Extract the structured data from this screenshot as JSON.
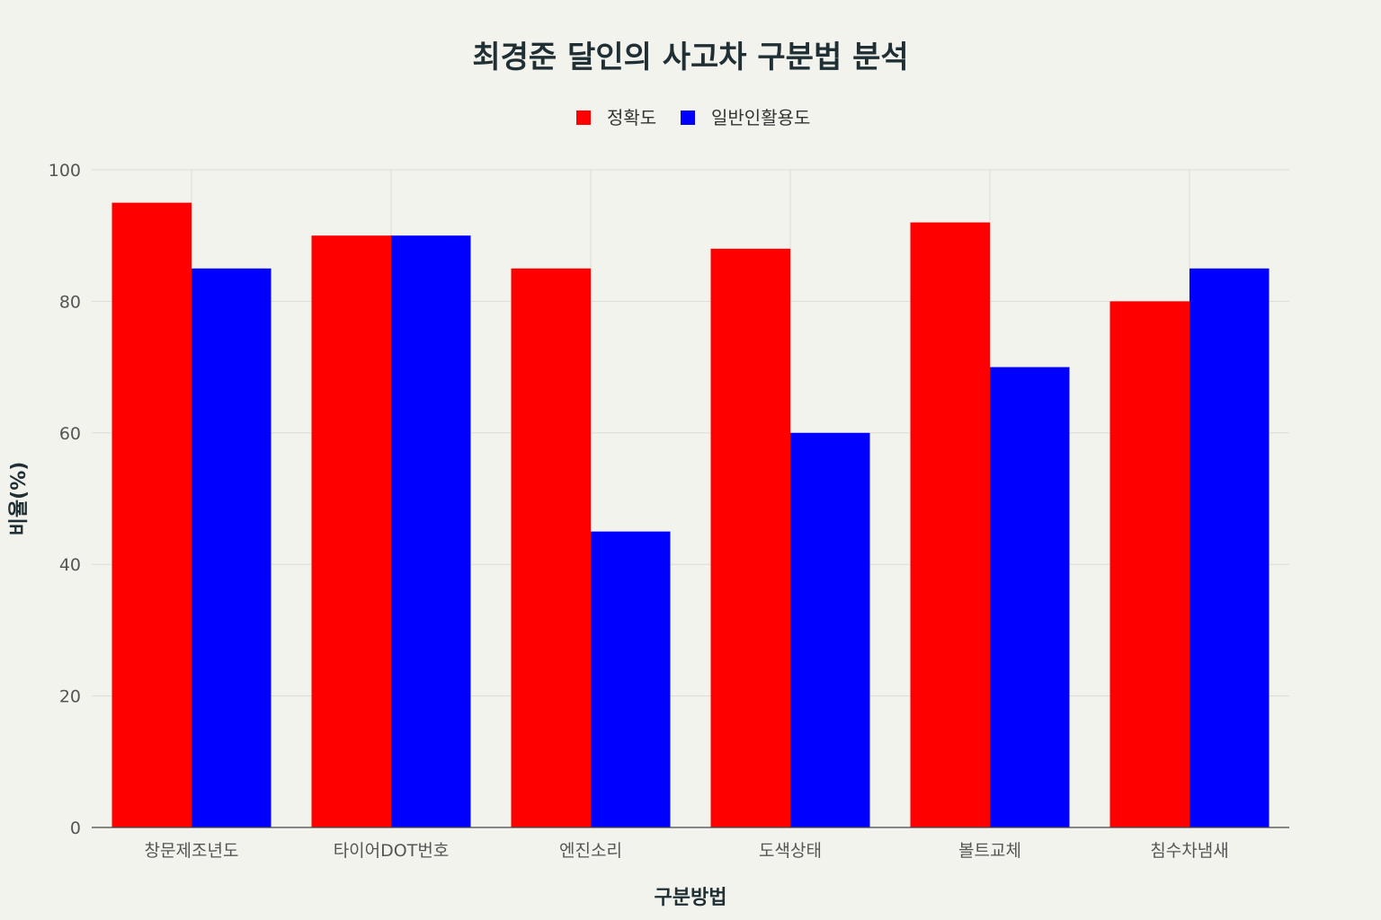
{
  "chart_data": {
    "type": "bar",
    "title": "최경준 달인의 사고차 구분법 분석",
    "xlabel": "구분방법",
    "ylabel": "비율(%)",
    "ylim": [
      0,
      100
    ],
    "yticks": [
      0,
      20,
      40,
      60,
      80,
      100
    ],
    "grid": true,
    "legend_position": "top-center",
    "categories": [
      "창문제조년도",
      "타이어DOT번호",
      "엔진소리",
      "도색상태",
      "볼트교체",
      "침수차냄새"
    ],
    "series": [
      {
        "name": "정확도",
        "color": "#ff0000",
        "values": [
          95,
          90,
          85,
          88,
          92,
          80
        ]
      },
      {
        "name": "일반인활용도",
        "color": "#0000ff",
        "values": [
          85,
          90,
          45,
          60,
          70,
          85
        ]
      }
    ]
  }
}
